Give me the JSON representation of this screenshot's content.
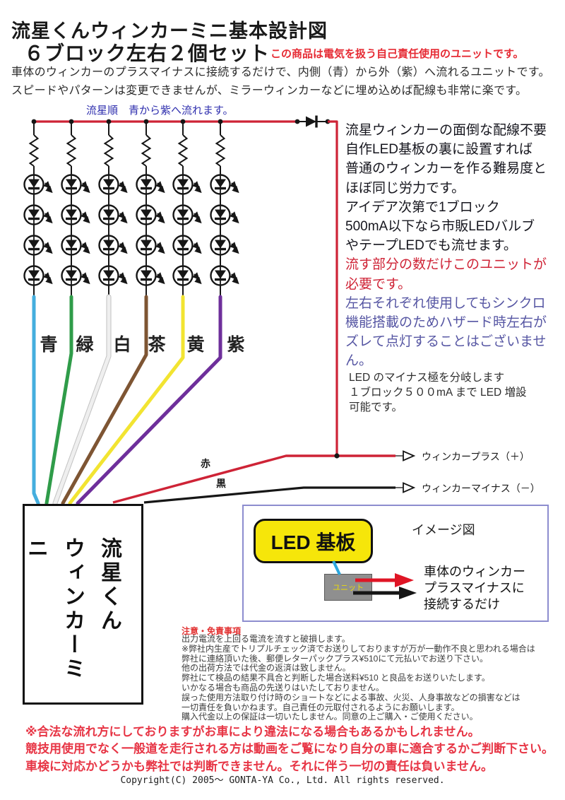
{
  "header": {
    "title": "流星くんウィンカーミニ基本設計図",
    "subtitle": "６ブロック左右２個セット",
    "warning": "この商品は電気を扱う自己責任使用のユニットです。",
    "intro": "車体のウィンカーのプラスマイナスに接続するだけで、内側（青）から外（紫）へ流れるユニットです。\nスピードやパターンは変更できませんが、ミラーウィンカーなどに埋め込めば配線も非常に楽です。"
  },
  "diagram": {
    "flow_note": "流星順　青から紫へ流れます。",
    "wire_labels": [
      "青",
      "緑",
      "白",
      "茶",
      "黄",
      "紫"
    ],
    "wire_colors": [
      "#45aede",
      "#2f9c49",
      "#efefef",
      "#7e5533",
      "#f2e431",
      "#6e2f9b"
    ],
    "red_wire_color": "#ce2336",
    "black_wire_color": "#161616",
    "red_wire_label": "赤",
    "black_wire_label": "黒",
    "plus_output_label": "ウィンカープラス（＋）",
    "minus_output_label": "ウィンカーマイナス（－）",
    "unit_name": "流星くん\nウィンカーミニ"
  },
  "side_notes": {
    "black_text": "流星ウィンカーの面倒な配線不要\n自作LED基板の裏に設置すれば\n普通のウィンカーを作る難易度と\nほぼ同じ労力です。\nアイデア次第で1ブロック\n500mA以下なら市販LEDバルブ\nやテープLEDでも流せます。",
    "red_text": "流す部分の数だけこのユニットが\n必要です。",
    "blue_text": "左右それぞれ使用してもシンクロ\n機能搭載のためハザード時左右が\nズレて点灯することはございません。",
    "branch_note": "LED のマイナス極を分岐します\n１ブロック５００mA まで LED 増設\n可能です。"
  },
  "image_figure": {
    "caption": "イメージ図",
    "board_label": "LED 基板",
    "unit_label": "ユニット",
    "description": "車体のウィンカー\nプラスマイナスに\n接続するだけ"
  },
  "disclaimer": {
    "heading": "注意・免責事項",
    "body": "出力電流を上回る電流を流すと破損します。\n※弊社内生産でトリプルチェック済でお送りしておりますが万が一動作不良と思われる場合は\n弊社に連絡頂いた後、郵便レターパックプラス¥510にて元払いでお送り下さい。\n他の出荷方法では代金の返済は致しません。\n弊社にて検品の結果不具合と判断した場合送料¥510 と良品をお送りいたします。\nいかなる場合も商品の先送りはいたしておりません。\n誤った使用方法取り付け時のショートなどによる事故、火災、人身事故などの損害などは\n一切責任を負いかねます。自己責任の元取付されるようにお願いします。\n購入代金以上の保証は一切いたしません。同意の上ご購入・ご使用ください。",
    "legal_warning": "※合法な流れ方にしておりますがお車により違法になる場合もあるかもしれません。\n競技用使用でなく一般道を走行される方は動画をご覧になり自分の車に適合するかご判断下さい。\n車検に対応かどうかも弊社では判断できません。それに伴う一切の責任は負いません。",
    "copyright": "Copyright(C)  2005～  GONTA-YA Co., Ltd.  All rights reserved."
  }
}
